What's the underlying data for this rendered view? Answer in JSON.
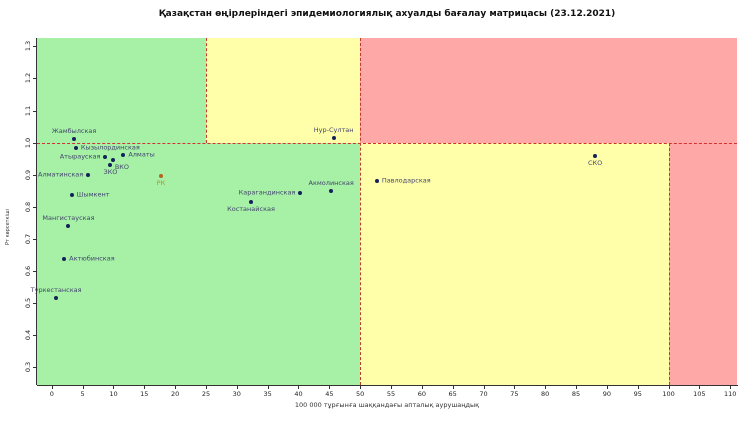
{
  "title": "Қазақстан өңірлеріндегі эпидемиологиялық ахуалды бағалау матрицасы  (23.12.2021)",
  "chart_data": {
    "type": "scatter",
    "title": "Қазақстан өңірлеріндегі эпидемиологиялық ахуалды бағалау матрицасы  (23.12.2021)",
    "xlabel": "100 000 тұрғынға шаққандағы апталық аурушаңдық",
    "ylabel": "Рт көрсеткіші",
    "xlim": [
      -2.4,
      111.1
    ],
    "ylim": [
      0.245,
      1.326
    ],
    "x_ticks": [
      0,
      5,
      10,
      15,
      20,
      25,
      30,
      35,
      40,
      45,
      50,
      55,
      60,
      65,
      70,
      75,
      80,
      85,
      90,
      95,
      100,
      105,
      110
    ],
    "y_ticks": [
      0.3,
      0.4,
      0.5,
      0.6,
      0.7,
      0.8,
      0.9,
      1.0,
      1.1,
      1.2,
      1.3
    ],
    "grid": false,
    "legend": null,
    "colors": {
      "green": "#a6f1a6",
      "yellow": "#ffffaa",
      "red": "#ffa8a8",
      "dash": "#c23a28",
      "point": "#14215a",
      "label": "#44446e",
      "axis": "#333333"
    },
    "zones": [
      {
        "x1": -2.4,
        "x2": 25,
        "y1": 1.0,
        "y2": 1.326,
        "color": "green"
      },
      {
        "x1": 25,
        "x2": 50,
        "y1": 1.0,
        "y2": 1.326,
        "color": "yellow"
      },
      {
        "x1": 50,
        "x2": 111.1,
        "y1": 1.0,
        "y2": 1.326,
        "color": "red"
      },
      {
        "x1": -2.4,
        "x2": 50,
        "y1": 0.245,
        "y2": 1.0,
        "color": "green"
      },
      {
        "x1": 50,
        "x2": 100,
        "y1": 0.245,
        "y2": 1.0,
        "color": "yellow"
      },
      {
        "x1": 100,
        "x2": 111.1,
        "y1": 0.245,
        "y2": 1.0,
        "color": "red"
      }
    ],
    "dashed_lines": [
      {
        "type": "h",
        "y": 1.0,
        "x1": -2.4,
        "x2": 111.1
      },
      {
        "type": "v",
        "x": 25,
        "y1": 1.0,
        "y2": 1.326
      },
      {
        "type": "v",
        "x": 50,
        "y1": 0.245,
        "y2": 1.326
      },
      {
        "type": "v",
        "x": 100,
        "y1": 0.245,
        "y2": 1.0
      }
    ],
    "points": [
      {
        "name": "Жамбылская",
        "x": 3.6,
        "y": 1.011,
        "pos": "above"
      },
      {
        "name": "Кызылординская",
        "x": 3.9,
        "y": 0.984,
        "pos": "right"
      },
      {
        "name": "Атырауская",
        "x": 8.7,
        "y": 0.955,
        "pos": "left"
      },
      {
        "name": "Алматы",
        "x": 11.6,
        "y": 0.962,
        "pos": "right"
      },
      {
        "name": "ВКО",
        "x": 9.9,
        "y": 0.945,
        "pos": "below-right"
      },
      {
        "name": "ЗКО",
        "x": 9.5,
        "y": 0.929,
        "pos": "below"
      },
      {
        "name": "Алматинская",
        "x": 5.9,
        "y": 0.899,
        "pos": "left"
      },
      {
        "name": "РК",
        "x": 17.7,
        "y": 0.896,
        "pos": "below",
        "point_color": "#b5651d",
        "label_color": "#bf8a30"
      },
      {
        "name": "Шымкент",
        "x": 3.2,
        "y": 0.837,
        "pos": "right"
      },
      {
        "name": "Мангистауская",
        "x": 2.7,
        "y": 0.741,
        "pos": "above"
      },
      {
        "name": "Актюбинская",
        "x": 2.0,
        "y": 0.638,
        "pos": "right"
      },
      {
        "name": "Туркестанская",
        "x": 0.7,
        "y": 0.515,
        "pos": "above"
      },
      {
        "name": "Костанайская",
        "x": 32.3,
        "y": 0.815,
        "pos": "below"
      },
      {
        "name": "Карагандинская",
        "x": 40.3,
        "y": 0.844,
        "pos": "left"
      },
      {
        "name": "Акмолинская",
        "x": 45.3,
        "y": 0.85,
        "pos": "above"
      },
      {
        "name": "Нур-Султан",
        "x": 45.7,
        "y": 1.014,
        "pos": "above"
      },
      {
        "name": "Павлодарская",
        "x": 52.7,
        "y": 0.881,
        "pos": "right"
      },
      {
        "name": "СКО",
        "x": 88.1,
        "y": 0.959,
        "pos": "below"
      }
    ]
  }
}
